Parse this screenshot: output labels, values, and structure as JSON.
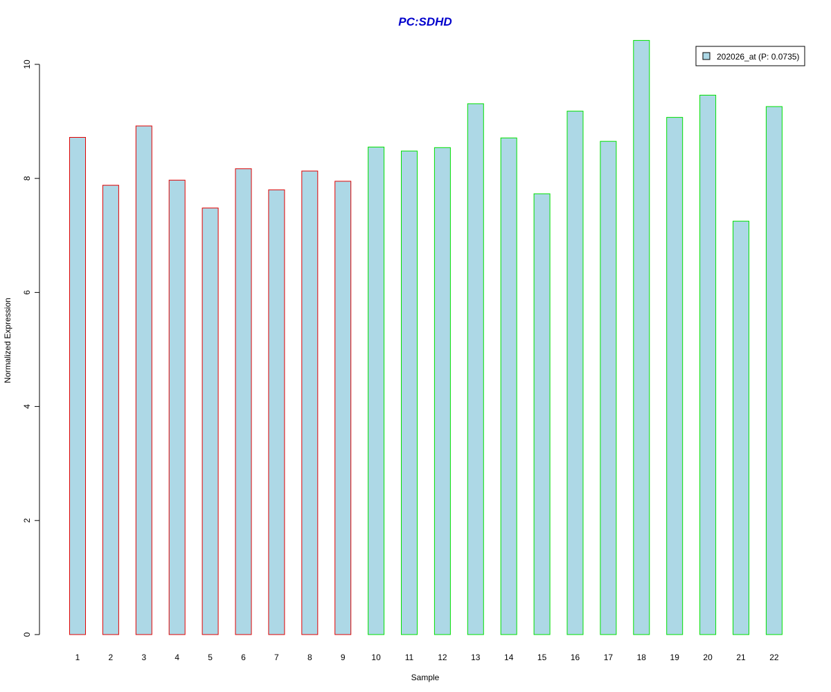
{
  "chart_data": {
    "type": "bar",
    "title": "PC:SDHD",
    "xlabel": "Sample",
    "ylabel": "Normalized Expression",
    "categories": [
      "1",
      "2",
      "3",
      "4",
      "5",
      "6",
      "7",
      "8",
      "9",
      "10",
      "11",
      "12",
      "13",
      "14",
      "15",
      "16",
      "17",
      "18",
      "19",
      "20",
      "21",
      "22"
    ],
    "series": [
      {
        "name": "202026_at (P: 0.0735)",
        "values": [
          8.72,
          7.88,
          8.92,
          7.97,
          7.48,
          8.17,
          7.8,
          8.13,
          7.95,
          8.55,
          8.48,
          8.54,
          9.31,
          8.71,
          7.73,
          9.18,
          8.65,
          10.42,
          9.07,
          9.46,
          7.25,
          9.26
        ]
      }
    ],
    "group_border_colors": [
      "#e00000",
      "#e00000",
      "#e00000",
      "#e00000",
      "#e00000",
      "#e00000",
      "#e00000",
      "#e00000",
      "#e00000",
      "#00e000",
      "#00e000",
      "#00e000",
      "#00e000",
      "#00e000",
      "#00e000",
      "#00e000",
      "#00e000",
      "#00e000",
      "#00e000",
      "#00e000",
      "#00e000",
      "#00e000"
    ],
    "bar_fill": "#add8e6",
    "title_color": "#0000cc",
    "y_ticks": [
      0,
      2,
      4,
      6,
      8,
      10
    ],
    "ylim": [
      0,
      10.42
    ],
    "grid": false,
    "legend_position": "top-right"
  }
}
